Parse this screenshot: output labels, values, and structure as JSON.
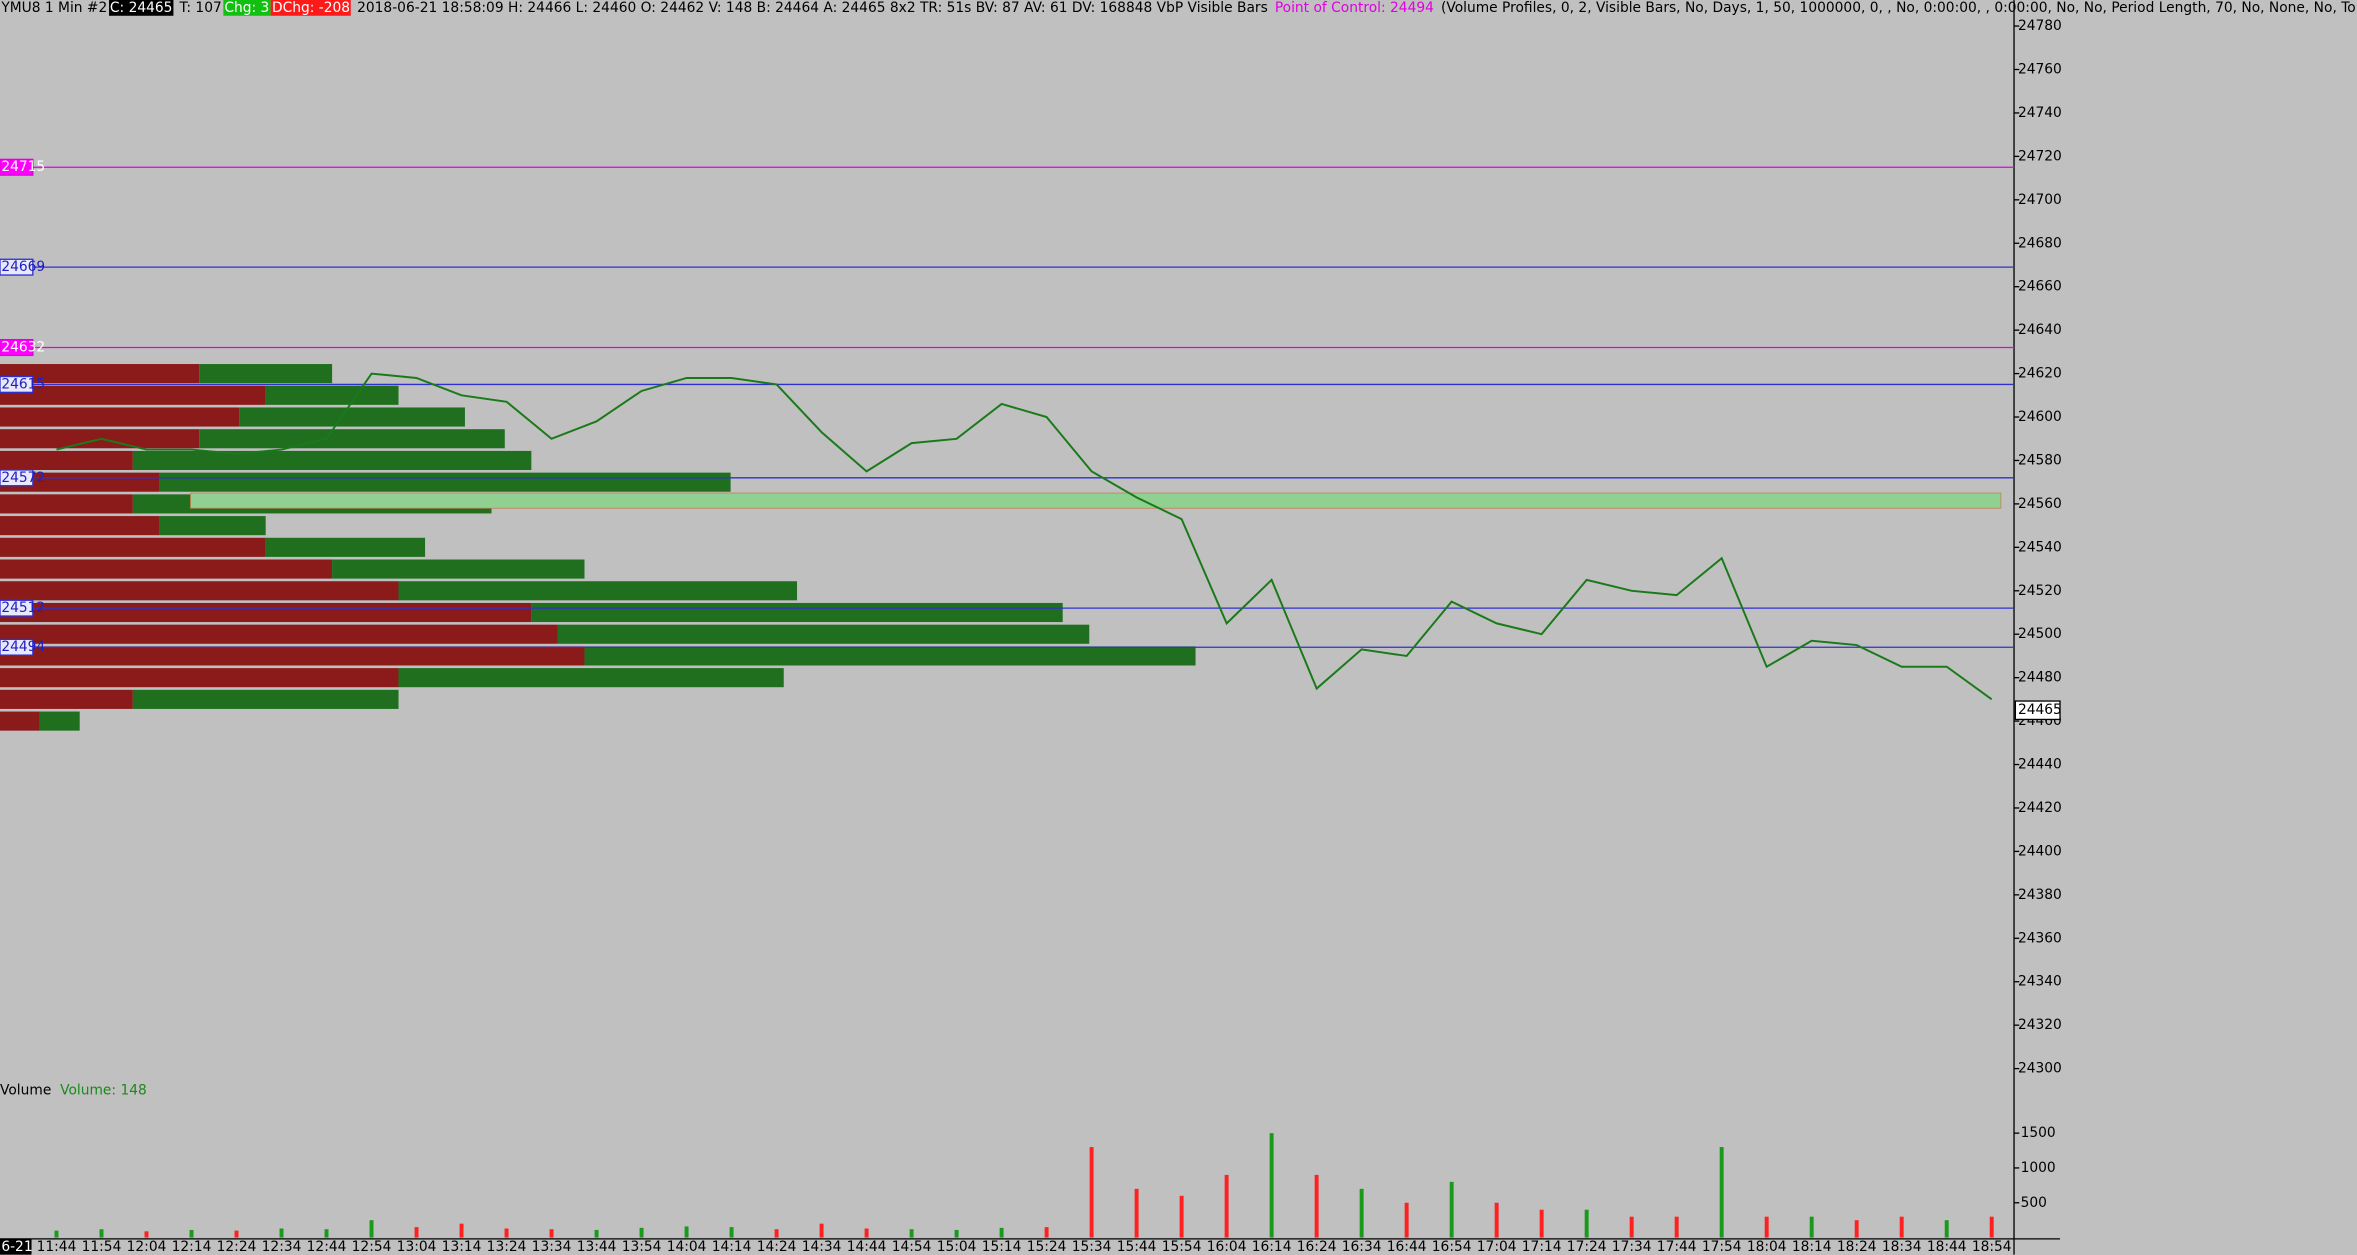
{
  "header": {
    "symbol": "YMU8  1 Min  #2",
    "close": "C: 24465",
    "ticks": "T: 107",
    "change": "Chg: 3",
    "daily_change": "DChg: -208",
    "info": "2018-06-21 18:58:09 H: 24466 L: 24460 O: 24462 V: 148 B: 24464 A: 24465 8x2 TR: 51s BV: 87 AV: 61 DV: 168848 VbP Visible Bars",
    "poc": "Point of Control: 24494",
    "study": "(Volume Profiles, 0, 2, Visible Bars, No, Days, 1, 50, 1000000, 0, , No, 0:00:00, , 0:00:00, No, No, Period Length, 70, No, None, No, To"
  },
  "chart_data": [
    {
      "type": "line",
      "date": "6-21",
      "categories": [
        "11:44",
        "11:54",
        "12:04",
        "12:14",
        "12:24",
        "12:34",
        "12:44",
        "12:54",
        "13:04",
        "13:14",
        "13:24",
        "13:34",
        "13:44",
        "13:54",
        "14:04",
        "14:14",
        "14:24",
        "14:34",
        "14:44",
        "14:54",
        "15:04",
        "15:14",
        "15:24",
        "15:34",
        "15:44",
        "15:54",
        "16:04",
        "16:14",
        "16:24",
        "16:34",
        "16:44",
        "16:54",
        "17:04",
        "17:14",
        "17:24",
        "17:34",
        "17:44",
        "17:54",
        "18:04",
        "18:14",
        "18:24",
        "18:34",
        "18:44",
        "18:54"
      ],
      "values": [
        24585,
        24590,
        24585,
        24585,
        24583,
        24585,
        24590,
        24620,
        24618,
        24610,
        24607,
        24590,
        24598,
        24612,
        24618,
        24618,
        24615,
        24593,
        24575,
        24588,
        24590,
        24606,
        24600,
        24575,
        24563,
        24553,
        24505,
        24525,
        24475,
        24493,
        24490,
        24515,
        24505,
        24500,
        24525,
        24520,
        24518,
        24535,
        24485,
        24497,
        24495,
        24485,
        24485,
        24470
      ],
      "color": "#1a7a1a",
      "ylim": [
        24296,
        24792
      ],
      "yticks": [
        24300,
        24320,
        24340,
        24360,
        24380,
        24400,
        24420,
        24440,
        24460,
        24480,
        24500,
        24520,
        24540,
        24560,
        24580,
        24600,
        24620,
        24640,
        24660,
        24680,
        24700,
        24720,
        24740,
        24760,
        24780
      ],
      "levels": [
        {
          "value": 24715,
          "color": "#e000e0"
        },
        {
          "value": 24669,
          "color": "#3030d0"
        },
        {
          "value": 24632,
          "color": "#e000e0"
        },
        {
          "value": 24615,
          "color": "#3030d0"
        },
        {
          "value": 24572,
          "color": "#3030d0"
        },
        {
          "value": 24512,
          "color": "#3030d0"
        },
        {
          "value": 24494,
          "color": "#3030d0"
        }
      ],
      "zone": [
        24558,
        24565
      ],
      "zone_color": "#90d090",
      "last": 24465,
      "profile": {
        "levels": [
          24460,
          24470,
          24480,
          24490,
          24500,
          24510,
          24520,
          24530,
          24540,
          24550,
          24560,
          24570,
          24580,
          24590,
          24600,
          24610,
          24620
        ],
        "sell": [
          30,
          100,
          300,
          440,
          420,
          400,
          300,
          250,
          200,
          120,
          100,
          120,
          100,
          150,
          180,
          200,
          150
        ],
        "buy": [
          30,
          200,
          290,
          460,
          400,
          400,
          300,
          190,
          120,
          80,
          270,
          430,
          300,
          230,
          170,
          100,
          100
        ],
        "sell_color": "#8b1a1a",
        "buy_color": "#1f6f1f"
      }
    },
    {
      "type": "bar",
      "title": "Volume",
      "subtitle": "Volume: 148",
      "values": [
        100,
        120,
        90,
        110,
        100,
        130,
        120,
        250,
        150,
        200,
        130,
        120,
        110,
        140,
        160,
        150,
        120,
        200,
        130,
        120,
        110,
        140,
        150,
        1300,
        700,
        600,
        900,
        1500,
        900,
        700,
        500,
        800,
        500,
        400,
        400,
        300,
        300,
        1300,
        300,
        300,
        250,
        300,
        250,
        300
      ],
      "up_color": "#1a9a1a",
      "down_color": "#ff2020",
      "ylim": [
        0,
        2000
      ],
      "yticks": [
        500,
        1000,
        1500
      ]
    }
  ]
}
